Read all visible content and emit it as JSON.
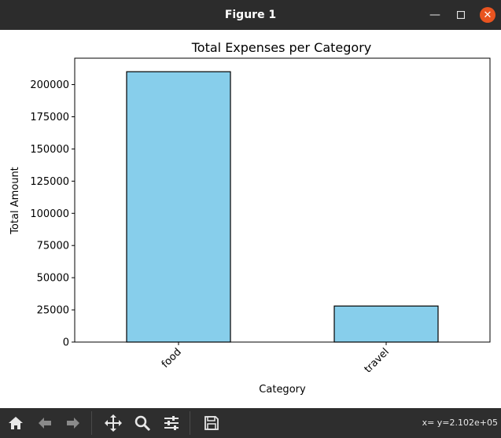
{
  "window": {
    "title": "Figure 1"
  },
  "icons": {
    "minimize": "minimize-icon",
    "maximize": "maximize-icon",
    "close": "close-icon",
    "home": "home-icon",
    "back": "arrow-left-icon",
    "forward": "arrow-right-icon",
    "pan": "move-icon",
    "zoom": "magnifier-icon",
    "subplots": "sliders-icon",
    "save": "floppy-disk-icon"
  },
  "toolbar": {
    "coords_text": "x= y=2.102e+05"
  },
  "chart_data": {
    "type": "bar",
    "title": "Total Expenses per Category",
    "xlabel": "Category",
    "ylabel": "Total Amount",
    "categories": [
      "food",
      "travel"
    ],
    "values": [
      210000,
      28000
    ],
    "ylim": [
      0,
      220500
    ],
    "yticks": [
      0,
      25000,
      50000,
      75000,
      100000,
      125000,
      150000,
      175000,
      200000
    ],
    "ytick_labels": [
      "0",
      "25000",
      "50000",
      "75000",
      "100000",
      "125000",
      "150000",
      "175000",
      "200000"
    ],
    "bar_color": "#87ceeb",
    "bar_edge_color": "#000000",
    "grid": false,
    "xtick_rotation": 45
  }
}
